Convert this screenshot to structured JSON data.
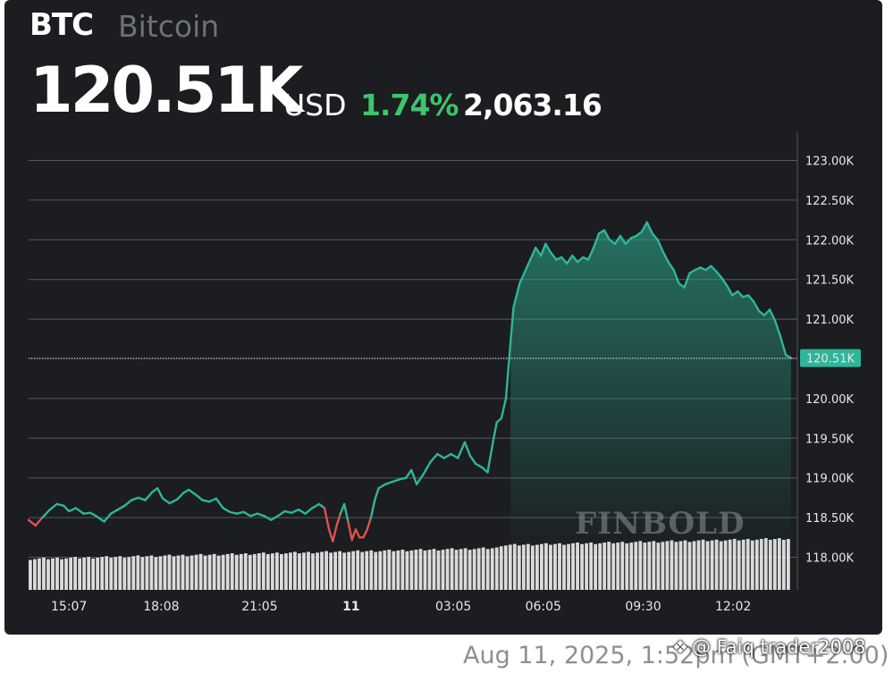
{
  "header": {
    "ticker": "BTC",
    "name": "Bitcoin",
    "price": "120.51K",
    "currency": "USD",
    "change_pct": "1.74%",
    "change_abs": "2,063.16"
  },
  "colors": {
    "up": "#2fb59a",
    "down": "#e0514f",
    "background": "#1b1d20",
    "grid": "#55585d",
    "volume": "#e6e6e6",
    "change_text": "#3ec46d"
  },
  "watermark": "FINBOLD",
  "footer": {
    "timestamp": "Aug 11, 2025, 1:52pm (GMT+2:00)",
    "credit": "@ Faiq trader2008",
    "credit_icon": "binance-diamond-icon"
  },
  "chart_data": {
    "type": "area",
    "title": "",
    "xlabel": "",
    "ylabel": "",
    "ylim": [
      117.75,
      123.25
    ],
    "y_ticks": [
      118.0,
      118.5,
      119.0,
      119.5,
      120.0,
      120.5,
      121.0,
      121.5,
      122.0,
      122.5,
      123.0
    ],
    "y_tick_labels": [
      "118.00K",
      "118.50K",
      "119.00K",
      "119.50K",
      "120.00K",
      "120.50K",
      "121.00K",
      "121.50K",
      "122.00K",
      "122.50K",
      "123.00K"
    ],
    "x_range": [
      0,
      100
    ],
    "x_ticks": [
      {
        "label": "15:07",
        "x": 5.3
      },
      {
        "label": "18:08",
        "x": 17.4
      },
      {
        "label": "21:05",
        "x": 30.3
      },
      {
        "label": "11",
        "x": 42.3
      },
      {
        "label": "03:05",
        "x": 55.7
      },
      {
        "label": "06:05",
        "x": 67.5
      },
      {
        "label": "09:30",
        "x": 80.6
      },
      {
        "label": "12:02",
        "x": 92.4
      }
    ],
    "current_price_label": "120.51K",
    "current_value": 120.51,
    "grid": true,
    "series": [
      {
        "points": [
          [
            0,
            118.47
          ],
          [
            0.9,
            118.4
          ],
          [
            1.8,
            118.5
          ],
          [
            2.8,
            118.6
          ],
          [
            3.7,
            118.67
          ],
          [
            4.6,
            118.65
          ],
          [
            5.3,
            118.58
          ],
          [
            6.2,
            118.62
          ],
          [
            7.2,
            118.55
          ],
          [
            8.1,
            118.56
          ],
          [
            9,
            118.51
          ],
          [
            9.9,
            118.45
          ],
          [
            10.8,
            118.55
          ],
          [
            11.7,
            118.6
          ],
          [
            12.6,
            118.65
          ],
          [
            13.5,
            118.72
          ],
          [
            14.4,
            118.75
          ],
          [
            15.3,
            118.72
          ],
          [
            16.2,
            118.82
          ],
          [
            16.9,
            118.87
          ],
          [
            17.6,
            118.74
          ],
          [
            18.5,
            118.68
          ],
          [
            19.5,
            118.73
          ],
          [
            20.3,
            118.81
          ],
          [
            21,
            118.85
          ],
          [
            21.9,
            118.79
          ],
          [
            22.8,
            118.72
          ],
          [
            23.7,
            118.7
          ],
          [
            24.6,
            118.74
          ],
          [
            25.5,
            118.62
          ],
          [
            26.4,
            118.57
          ],
          [
            27.3,
            118.55
          ],
          [
            28.2,
            118.57
          ],
          [
            29.1,
            118.52
          ],
          [
            30,
            118.55
          ],
          [
            30.9,
            118.52
          ],
          [
            31.8,
            118.47
          ],
          [
            32.7,
            118.52
          ],
          [
            33.6,
            118.58
          ],
          [
            34.5,
            118.56
          ],
          [
            35.4,
            118.6
          ],
          [
            36.3,
            118.55
          ],
          [
            37.2,
            118.62
          ],
          [
            38.1,
            118.67
          ],
          [
            38.8,
            118.62
          ],
          [
            39.4,
            118.35
          ],
          [
            39.9,
            118.2
          ],
          [
            40.4,
            118.4
          ],
          [
            40.9,
            118.55
          ],
          [
            41.4,
            118.67
          ],
          [
            41.9,
            118.45
          ],
          [
            42.4,
            118.22
          ],
          [
            42.9,
            118.35
          ],
          [
            43.4,
            118.25
          ],
          [
            43.9,
            118.25
          ],
          [
            44.4,
            118.35
          ],
          [
            44.9,
            118.5
          ],
          [
            45.4,
            118.72
          ],
          [
            45.9,
            118.87
          ],
          [
            46.8,
            118.92
          ],
          [
            47.7,
            118.95
          ],
          [
            48.6,
            118.98
          ],
          [
            49.5,
            119.0
          ],
          [
            50.2,
            119.1
          ],
          [
            50.9,
            118.92
          ],
          [
            51.8,
            119.05
          ],
          [
            52.7,
            119.2
          ],
          [
            53.6,
            119.3
          ],
          [
            54.5,
            119.25
          ],
          [
            55.4,
            119.3
          ],
          [
            56.3,
            119.25
          ],
          [
            57.2,
            119.45
          ],
          [
            57.9,
            119.28
          ],
          [
            58.6,
            119.18
          ],
          [
            59.5,
            119.13
          ],
          [
            60.2,
            119.07
          ],
          [
            60.9,
            119.45
          ],
          [
            61.4,
            119.7
          ],
          [
            62,
            119.75
          ],
          [
            62.6,
            120.0
          ],
          [
            63.2,
            120.7
          ],
          [
            63.6,
            121.15
          ],
          [
            64.4,
            121.45
          ],
          [
            65.1,
            121.6
          ],
          [
            65.8,
            121.75
          ],
          [
            66.5,
            121.9
          ],
          [
            67.2,
            121.8
          ],
          [
            67.8,
            121.95
          ],
          [
            68.4,
            121.85
          ],
          [
            69.2,
            121.75
          ],
          [
            69.9,
            121.78
          ],
          [
            70.6,
            121.7
          ],
          [
            71.3,
            121.8
          ],
          [
            72,
            121.72
          ],
          [
            72.7,
            121.78
          ],
          [
            73.4,
            121.75
          ],
          [
            74.1,
            121.9
          ],
          [
            74.8,
            122.08
          ],
          [
            75.5,
            122.12
          ],
          [
            76.2,
            122.0
          ],
          [
            76.9,
            121.95
          ],
          [
            77.6,
            122.05
          ],
          [
            78.3,
            121.95
          ],
          [
            79,
            122.02
          ],
          [
            79.7,
            122.05
          ],
          [
            80.4,
            122.1
          ],
          [
            81.1,
            122.22
          ],
          [
            81.8,
            122.08
          ],
          [
            82.5,
            122.0
          ],
          [
            83.2,
            121.85
          ],
          [
            83.9,
            121.72
          ],
          [
            84.6,
            121.62
          ],
          [
            85.3,
            121.45
          ],
          [
            86,
            121.4
          ],
          [
            86.7,
            121.58
          ],
          [
            87.4,
            121.62
          ],
          [
            88.1,
            121.65
          ],
          [
            88.8,
            121.62
          ],
          [
            89.5,
            121.67
          ],
          [
            90.2,
            121.6
          ],
          [
            90.9,
            121.52
          ],
          [
            91.6,
            121.42
          ],
          [
            92.3,
            121.3
          ],
          [
            93,
            121.35
          ],
          [
            93.7,
            121.28
          ],
          [
            94.4,
            121.3
          ],
          [
            95.1,
            121.22
          ],
          [
            95.8,
            121.1
          ],
          [
            96.5,
            121.05
          ],
          [
            97.2,
            121.12
          ],
          [
            97.9,
            120.98
          ],
          [
            98.6,
            120.78
          ],
          [
            99.3,
            120.55
          ],
          [
            100,
            120.51
          ]
        ]
      }
    ],
    "volume": {
      "ylim": [
        0,
        1
      ],
      "count": 170,
      "start": 0.55,
      "end": 0.86
    }
  }
}
